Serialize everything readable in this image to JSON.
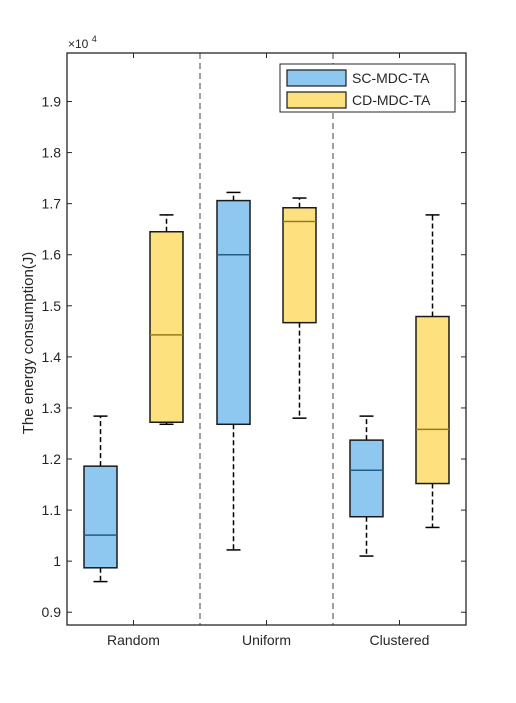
{
  "chart_data": {
    "type": "box",
    "exponent_label": "×10",
    "exponent_power": "4",
    "ylabel": "The energy consumption(J)",
    "xlabel": "",
    "ylim": [
      0.875,
      1.995
    ],
    "yticks": [
      0.9,
      1.0,
      1.1,
      1.2,
      1.3,
      1.4,
      1.5,
      1.6,
      1.7,
      1.8,
      1.9
    ],
    "ytick_labels": [
      "0.9",
      "1",
      "1.1",
      "1.2",
      "1.3",
      "1.4",
      "1.5",
      "1.6",
      "1.7",
      "1.8",
      "1.9"
    ],
    "categories": [
      "Random",
      "Uniform",
      "Clustered"
    ],
    "legend_position": "top-right",
    "grid": false,
    "separators": "dashed vertical lines between groups",
    "series": [
      {
        "name": "SC-MDC-TA",
        "color": "#8ec8f0",
        "boxes": [
          {
            "whisker_low": 0.96,
            "q1": 0.987,
            "median": 1.051,
            "q3": 1.186,
            "whisker_high": 1.284
          },
          {
            "whisker_low": 1.022,
            "q1": 1.268,
            "median": 1.6,
            "q3": 1.706,
            "whisker_high": 1.722
          },
          {
            "whisker_low": 1.01,
            "q1": 1.087,
            "median": 1.178,
            "q3": 1.237,
            "whisker_high": 1.284
          }
        ]
      },
      {
        "name": "CD-MDC-TA",
        "color": "#fde17f",
        "boxes": [
          {
            "whisker_low": 1.268,
            "q1": 1.272,
            "median": 1.443,
            "q3": 1.645,
            "whisker_high": 1.678
          },
          {
            "whisker_low": 1.28,
            "q1": 1.467,
            "median": 1.665,
            "q3": 1.692,
            "whisker_high": 1.711
          },
          {
            "whisker_low": 1.066,
            "q1": 1.152,
            "median": 1.258,
            "q3": 1.479,
            "whisker_high": 1.678
          }
        ]
      }
    ]
  },
  "colors": {
    "box_edge": "#1a1a1a",
    "axis": "#262626",
    "separator": "#808080"
  }
}
